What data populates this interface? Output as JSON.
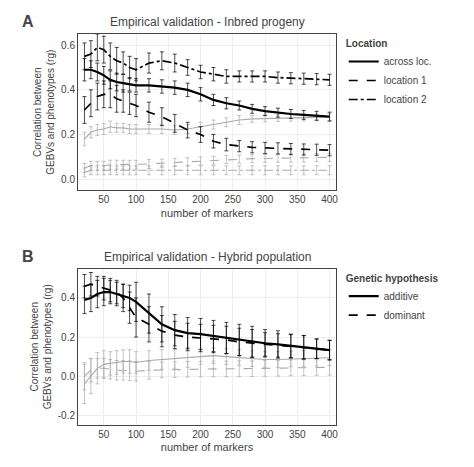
{
  "chart_data": [
    {
      "type": "line",
      "panel_label": "A",
      "title": "Empirical validation - Inbred progeny",
      "xlabel": "number of markers",
      "ylabel": "Correlation between\nGEBVs and phenotypes (rg)",
      "legend_title": "Location",
      "legend": "upper right",
      "grid": true,
      "xlim": [
        10,
        410
      ],
      "xticks": [
        50,
        100,
        150,
        200,
        250,
        300,
        350,
        400
      ],
      "ylim": [
        -0.05,
        0.65
      ],
      "yticks": [
        {
          "value": 0.0,
          "label": "0.0"
        },
        0.2,
        0.4,
        0.6
      ],
      "x": [
        20,
        30,
        40,
        50,
        60,
        70,
        80,
        90,
        100,
        120,
        140,
        160,
        180,
        200,
        220,
        240,
        260,
        280,
        300,
        320,
        340,
        360,
        380,
        400
      ],
      "series": [
        {
          "color": "#aaaaaa",
          "line_style": "solid",
          "values": [
            0.18,
            0.21,
            0.22,
            0.225,
            0.235,
            0.23,
            0.23,
            0.225,
            0.225,
            0.225,
            0.225,
            0.22,
            0.225,
            0.235,
            0.245,
            0.255,
            0.265,
            0.27,
            0.272,
            0.274,
            0.275,
            0.276,
            0.277,
            0.278
          ],
          "errors": [
            0.03,
            0.025,
            0.025,
            0.025,
            0.025,
            0.02,
            0.02,
            0.02,
            0.02,
            0.02,
            0.02,
            0.02,
            0.02,
            0.02,
            0.02,
            0.02,
            0.02,
            0.015,
            0.015,
            0.015,
            0.015,
            0.015,
            0.015,
            0.015
          ]
        },
        {
          "color": "#aaaaaa",
          "line_style": "dashed",
          "values": [
            0.05,
            0.06,
            0.06,
            0.06,
            0.065,
            0.065,
            0.065,
            0.065,
            0.065,
            0.068,
            0.072,
            0.075,
            0.078,
            0.082,
            0.085,
            0.088,
            0.09,
            0.092,
            0.093,
            0.094,
            0.095,
            0.096,
            0.097,
            0.098
          ],
          "errors": [
            0.02,
            0.02,
            0.02,
            0.02,
            0.02,
            0.02,
            0.02,
            0.02,
            0.02,
            0.02,
            0.018,
            0.018,
            0.018,
            0.018,
            0.018,
            0.018,
            0.018,
            0.018,
            0.018,
            0.018,
            0.018,
            0.018,
            0.018,
            0.018
          ]
        },
        {
          "color": "#aaaaaa",
          "line_style": "dashdot",
          "values": [
            0.03,
            0.04,
            0.04,
            0.04,
            0.04,
            0.04,
            0.04,
            0.04,
            0.04,
            0.04,
            0.04,
            0.04,
            0.04,
            0.04,
            0.04,
            0.04,
            0.04,
            0.04,
            0.04,
            0.04,
            0.04,
            0.04,
            0.04,
            0.04
          ],
          "errors": [
            0.02,
            0.02,
            0.02,
            0.02,
            0.02,
            0.02,
            0.02,
            0.02,
            0.02,
            0.02,
            0.02,
            0.02,
            0.02,
            0.02,
            0.02,
            0.02,
            0.02,
            0.02,
            0.02,
            0.02,
            0.02,
            0.02,
            0.02,
            0.02
          ]
        },
        {
          "name": "across loc.",
          "color": "#000000",
          "line_style": "solid",
          "values": [
            0.49,
            0.49,
            0.48,
            0.465,
            0.445,
            0.435,
            0.43,
            0.425,
            0.42,
            0.42,
            0.415,
            0.41,
            0.4,
            0.38,
            0.355,
            0.34,
            0.33,
            0.315,
            0.305,
            0.298,
            0.292,
            0.288,
            0.284,
            0.28
          ],
          "errors": [
            0.05,
            0.04,
            0.04,
            0.04,
            0.04,
            0.04,
            0.04,
            0.03,
            0.03,
            0.03,
            0.03,
            0.03,
            0.03,
            0.03,
            0.025,
            0.025,
            0.02,
            0.02,
            0.02,
            0.02,
            0.02,
            0.02,
            0.02,
            0.02
          ]
        },
        {
          "name": "location 1",
          "color": "#000000",
          "line_style": "dashed",
          "values": [
            0.31,
            0.34,
            0.37,
            0.38,
            0.38,
            0.36,
            0.35,
            0.34,
            0.33,
            0.3,
            0.28,
            0.25,
            0.22,
            0.2,
            0.17,
            0.155,
            0.148,
            0.143,
            0.14,
            0.138,
            0.135,
            0.133,
            0.132,
            0.13
          ],
          "errors": [
            0.06,
            0.06,
            0.06,
            0.06,
            0.06,
            0.06,
            0.05,
            0.05,
            0.05,
            0.045,
            0.04,
            0.04,
            0.035,
            0.035,
            0.03,
            0.028,
            0.025,
            0.025,
            0.025,
            0.025,
            0.025,
            0.025,
            0.025,
            0.025
          ]
        },
        {
          "name": "location 2",
          "color": "#000000",
          "line_style": "dashdot",
          "values": [
            0.55,
            0.56,
            0.59,
            0.58,
            0.55,
            0.53,
            0.52,
            0.5,
            0.49,
            0.52,
            0.53,
            0.52,
            0.5,
            0.48,
            0.47,
            0.46,
            0.46,
            0.46,
            0.46,
            0.455,
            0.452,
            0.45,
            0.448,
            0.445
          ],
          "errors": [
            0.06,
            0.06,
            0.06,
            0.06,
            0.06,
            0.06,
            0.05,
            0.05,
            0.05,
            0.045,
            0.04,
            0.04,
            0.035,
            0.03,
            0.03,
            0.03,
            0.025,
            0.025,
            0.025,
            0.025,
            0.025,
            0.025,
            0.025,
            0.025
          ]
        }
      ]
    },
    {
      "type": "line",
      "panel_label": "B",
      "title": "Empirical validation - Hybrid population",
      "xlabel": "number of markers",
      "ylabel": "Correlation between\nGEBVs and phenotypes (rg)",
      "legend_title": "Genetic hypothesis",
      "legend": "upper right",
      "grid": true,
      "xlim": [
        10,
        410
      ],
      "xticks": [
        50,
        100,
        150,
        200,
        250,
        300,
        350,
        400
      ],
      "ylim": [
        -0.25,
        0.55
      ],
      "yticks": [
        -0.2,
        {
          "value": 0.0,
          "label": "0.0"
        },
        0.2,
        0.4
      ],
      "x": [
        20,
        30,
        40,
        50,
        60,
        70,
        80,
        90,
        100,
        120,
        140,
        160,
        180,
        200,
        220,
        240,
        260,
        280,
        300,
        320,
        340,
        360,
        380,
        400
      ],
      "series": [
        {
          "color": "#aaaaaa",
          "line_style": "solid",
          "values": [
            -0.04,
            0.0,
            0.04,
            0.06,
            0.065,
            0.07,
            0.075,
            0.075,
            0.07,
            0.08,
            0.085,
            0.09,
            0.095,
            0.1,
            0.105,
            0.1,
            0.095,
            0.09,
            0.085,
            0.085,
            0.088,
            0.09,
            0.092,
            0.094
          ],
          "errors": [
            0.1,
            0.09,
            0.08,
            0.07,
            0.06,
            0.06,
            0.06,
            0.06,
            0.055,
            0.05,
            0.05,
            0.05,
            0.05,
            0.04,
            0.04,
            0.04,
            0.04,
            0.04,
            0.04,
            0.04,
            0.04,
            0.04,
            0.04,
            0.04
          ]
        },
        {
          "color": "#aaaaaa",
          "line_style": "dashed",
          "values": [
            0.0,
            0.03,
            0.04,
            0.04,
            0.035,
            0.03,
            0.03,
            0.028,
            0.025,
            0.03,
            0.032,
            0.033,
            0.035,
            0.036,
            0.037,
            0.037,
            0.038,
            0.038,
            0.039,
            0.04,
            0.042,
            0.043,
            0.044,
            0.045
          ],
          "errors": [
            0.07,
            0.06,
            0.05,
            0.05,
            0.05,
            0.05,
            0.05,
            0.05,
            0.05,
            0.045,
            0.04,
            0.04,
            0.04,
            0.04,
            0.04,
            0.04,
            0.04,
            0.04,
            0.04,
            0.04,
            0.04,
            0.04,
            0.04,
            0.04
          ]
        },
        {
          "name": "additive",
          "color": "#000000",
          "line_style": "solid",
          "values": [
            0.39,
            0.4,
            0.42,
            0.43,
            0.43,
            0.42,
            0.41,
            0.4,
            0.38,
            0.32,
            0.265,
            0.235,
            0.22,
            0.215,
            0.205,
            0.195,
            0.185,
            0.175,
            0.168,
            0.162,
            0.155,
            0.148,
            0.14,
            0.133
          ],
          "errors": [
            0.07,
            0.07,
            0.07,
            0.07,
            0.06,
            0.06,
            0.06,
            0.065,
            0.1,
            0.1,
            0.09,
            0.08,
            0.08,
            0.08,
            0.08,
            0.08,
            0.08,
            0.08,
            0.07,
            0.07,
            0.06,
            0.06,
            0.05,
            0.05
          ]
        },
        {
          "name": "dominant",
          "color": "#000000",
          "line_style": "dashed",
          "values": [
            0.46,
            0.47,
            0.46,
            0.45,
            0.44,
            0.43,
            0.4,
            0.35,
            0.3,
            0.265,
            0.23,
            0.21,
            0.2,
            0.195,
            0.19,
            0.185,
            0.175,
            0.168,
            0.162,
            0.157,
            0.152,
            0.147,
            0.14,
            0.133
          ],
          "errors": [
            0.06,
            0.06,
            0.05,
            0.06,
            0.06,
            0.06,
            0.07,
            0.08,
            0.1,
            0.09,
            0.08,
            0.07,
            0.07,
            0.07,
            0.07,
            0.07,
            0.07,
            0.07,
            0.06,
            0.06,
            0.06,
            0.06,
            0.05,
            0.05
          ]
        }
      ]
    }
  ]
}
